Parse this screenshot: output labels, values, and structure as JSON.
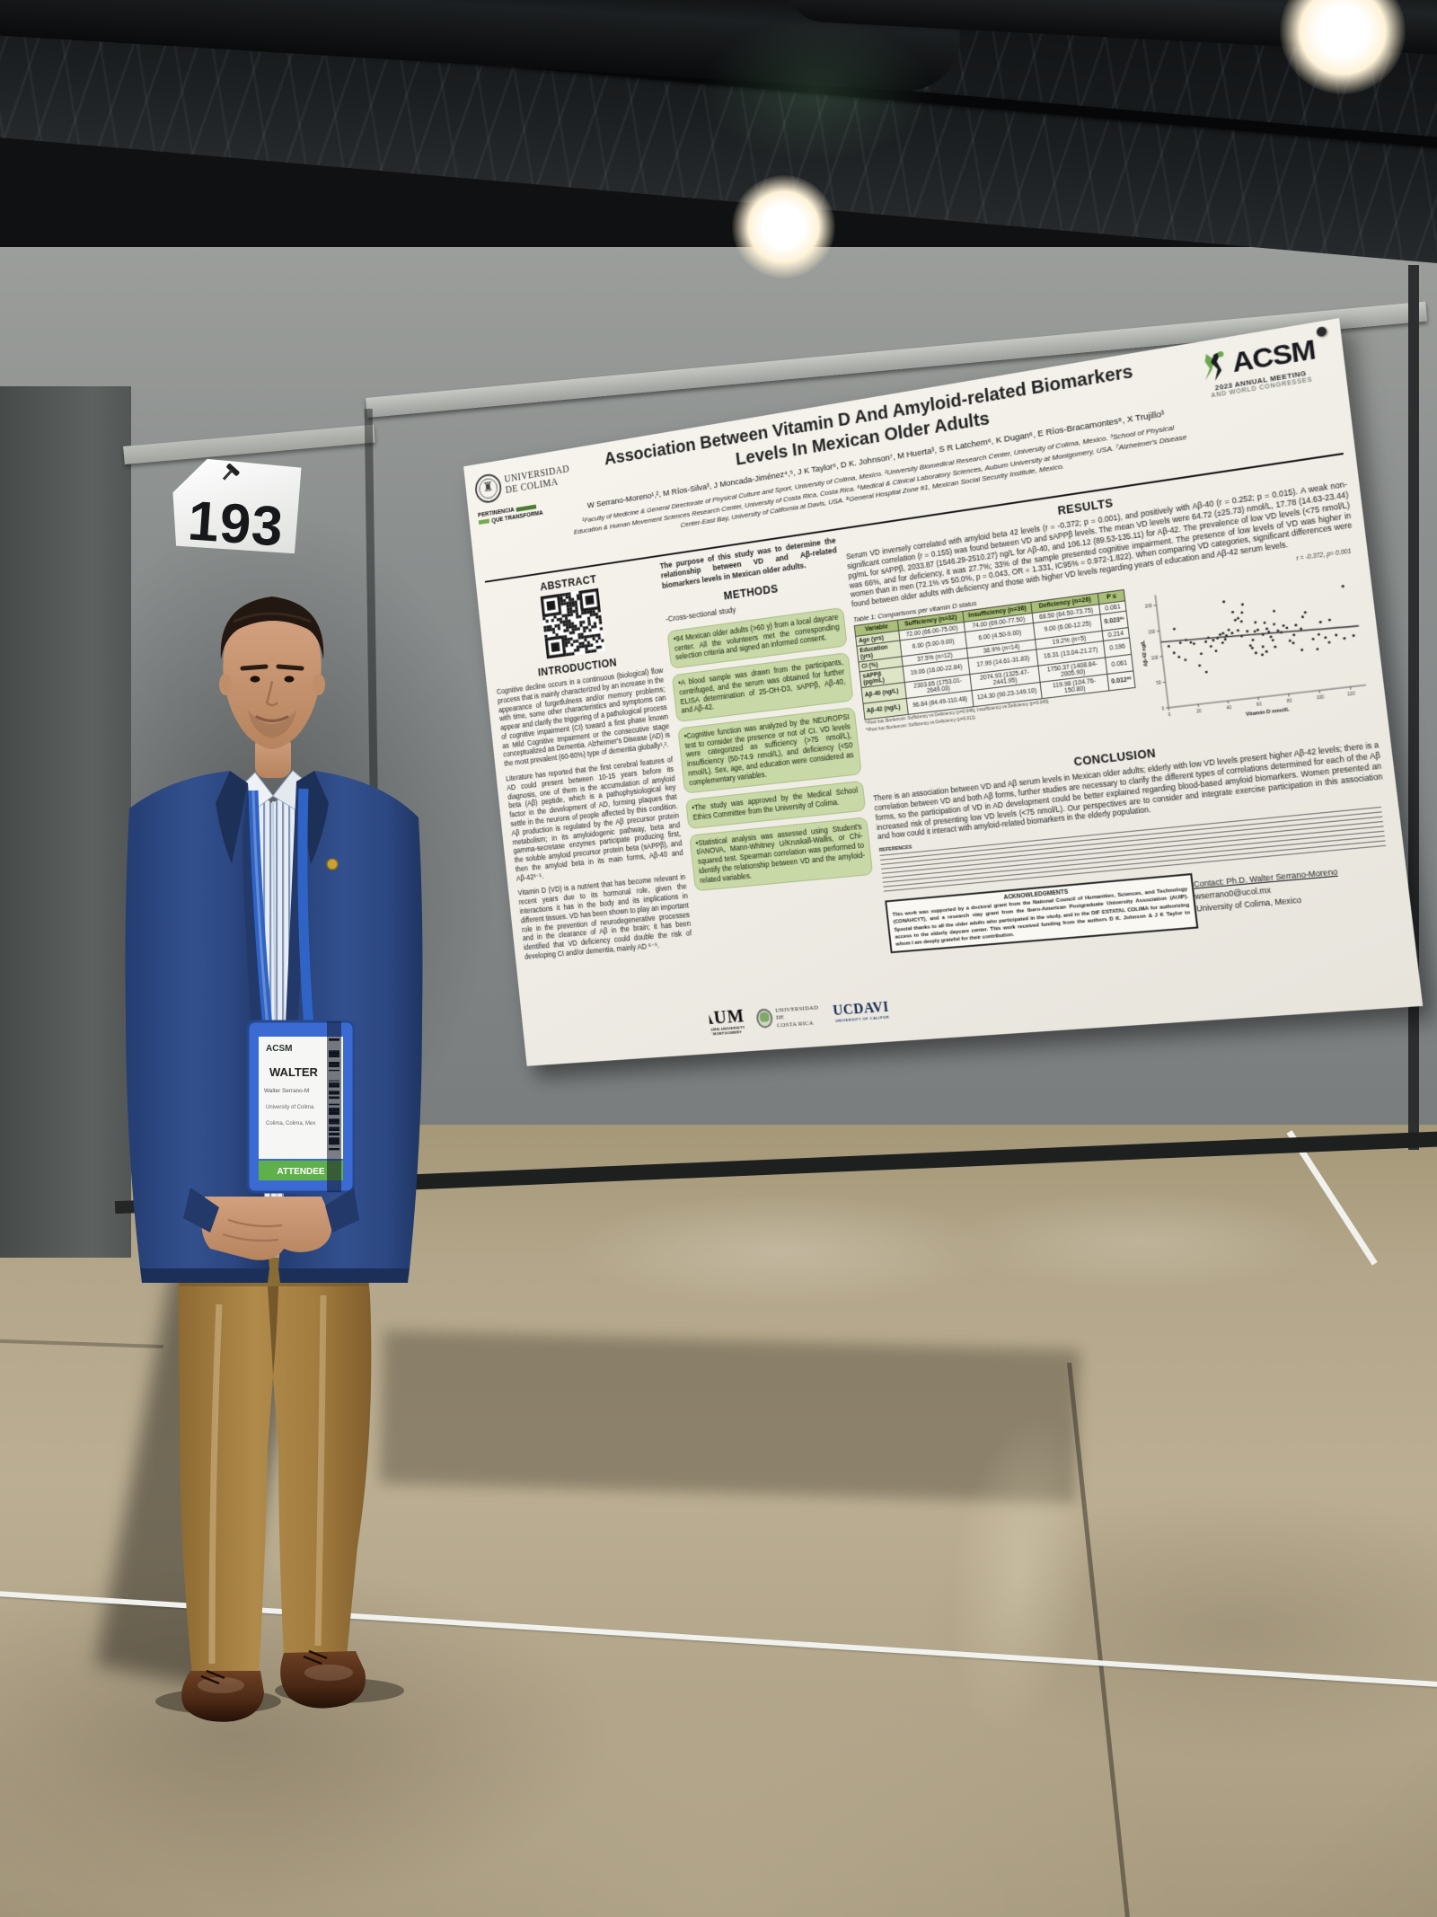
{
  "scene": {
    "board_tag": "193"
  },
  "poster": {
    "header": {
      "udec": {
        "line1": "UNIVERSIDAD",
        "line2": "DE COLIMA",
        "tag1": "PERTINENCIA",
        "tag2": "QUE TRANSFORMA"
      },
      "title1": "Association Between Vitamin D And Amyloid-related Biomarkers",
      "title2": "Levels In Mexican Older Adults",
      "authors": "W Serrano-Moreno¹,², M Ríos-Silva³, J Moncada-Jiménez⁴,⁵, J K Taylor⁶, D K. Johnson⁷, M Huerta³, S R Latchem⁶, K Dugan⁶, E Ríos-Bracamontes⁸, X Trujillo³",
      "affiliations": "¹Faculty of Medicine & General Directorate of Physical Culture and Sport, University of Colima, Mexico. ²University Biomedical Research Center, University of Colima, Mexico. ³School of Physical Education & Human Movement Sciences Research Center, University of Costa Rica, Costa Rica. ⁶Medical & Clinical Laboratory Sciences, Auburn University at Montgomery, USA. ⁷Alzheimer's Disease Center-East Bay, University of California at Davis, USA. ⁸General Hospital Zone #1, Mexican Social Security Institute, Mexico.",
      "acsm": {
        "name": "ACSM",
        "line1": "2023 ANNUAL MEETING",
        "line2": "AND WORLD CONGRESSES"
      }
    },
    "abstract_header": "ABSTRACT",
    "introduction": {
      "header": "INTRODUCTION",
      "p1": "Cognitive decline occurs in a continuous (biological) flow process that is mainly characterized by an increase in the appearance of forgetfulness and/or memory problems; with time, some other characteristics and symptoms can appear and clarify the triggering of a pathological process of cognitive impairment (CI) toward a first phase known as Mild Cognitive Impairment or the consecutive stage conceptualized as Dementia. Alzheimer's Disease (AD) is the most prevalent (60-80%) type of dementia globally¹,².",
      "p2": "Literature has reported that the first cerebral features of AD could present between 10-15 years before its diagnosis, one of them is the accumulation of amyloid beta (Aβ) peptide, which is a pathophysiological key factor in the development of AD, forming plaques that settle in the neurons of people affected by this condition. Aβ production is regulated by the Aβ precursor protein metabolism; in its amyloidogenic pathway, beta and gamma-secretase enzymes participate producing first, the soluble amyloid precursor protein beta (sAPPβ), and then the amyloid beta in its main forms, Aβ-40 and Aβ-42³⁻⁵.",
      "p3": "Vitamin D (VD) is a nutrient that has become relevant in recent years due to its hormonal role, given the interactions it has in the body and its implications in different tissues. VD has been shown to play an important role in the prevention of neurodegenerative processes and in the clearance of Aβ in the brain; it has been identified that VD deficiency could double the risk of developing CI and/or dementia, mainly AD ⁶⁻⁹."
    },
    "purpose": "The purpose of this study was to determine the relationship between VD and Aβ-related biomarkers levels in Mexican older adults.",
    "methods": {
      "header": "METHODS",
      "study": "-Cross-sectional study",
      "boxes": [
        "•94 Mexican older adults (>60 y) from a local daycare center. All the volunteers met the corresponding selection criteria and signed an informed consent.",
        "•A blood sample was drawn from the participants, centrifuged, and the serum was obtained for further ELISA determination of 25-OH-D3, sAPPβ, Aβ-40, and Aβ-42.",
        "•Cognitive function was analyzed by the NEUROPSI test to consider the presence or not of CI. VD levels were categorized as sufficiency (>75 nmol/L), insufficiency (50-74.9 nmol/L), and deficiency (<50 nmol/L). Sex, age, and education were considered as complementary variables.",
        "•The study was approved by the Medical School Ethics Committee from the University of Colima.",
        "•Statistical analysis was assessed using Student's t/ANOVA, Mann-Whitney U/Kruskall-Wallis, or Chi-squared test. Spearman correlation was performed to identify the relationship between VD and the amyloid-related variables."
      ]
    },
    "results": {
      "header": "RESULTS",
      "text": "Serum VD inversely correlated with amyloid beta 42 levels (r = -0.372; p = 0.001), and positively with Aβ-40 (r = 0.252; p = 0.015). A weak non-significant correlation (r = 0.155) was found between VD and sAPPβ levels. The mean VD levels were 64.72 (±25.73) nmol/L, 17.78 (14.63-23.44) pg/mL for sAPPβ, 2033.87 (1546.29-2510.27) ng/L for Aβ-40, and 106.12 (89.53-135.11) for Aβ-42. The prevalence of low VD levels (<75 nmol/L) was 66%, and for deficiency, it was 27.7%; 33% of the sample presented cognitive impairment. The presence of low levels of VD was higher in women than in men (72.1% vs 50.0%, p = 0.043, OR = 1.331, IC95% = 0.972-1.822). When comparing VD categories, significant differences were found between older adults with deficiency and those with higher VD levels regarding years of education and Aβ-42 serum levels."
    },
    "table": {
      "caption": "Table 1: Comparisons per vitamin D status",
      "headers": [
        "Variable",
        "Sufficiency (n=32)",
        "Insufficiency (n=36)",
        "Deficiency (n=26)",
        "P ≤"
      ],
      "rows": [
        [
          "Age (yrs)",
          "72.00 (66.00-75.00)",
          "74.00 (69.00-77.50)",
          "68.50 (64.50-73.75)",
          "0.061"
        ],
        [
          "Education (yrs)",
          "6.00 (5.00-9.00)",
          "6.00 (4.50-9.00)",
          "9.00 (6.00-12.25)",
          "0.023*¹"
        ],
        [
          "CI (%)",
          "37.5% (n=12)",
          "38.9% (n=14)",
          "19.2% (n=5)",
          "0.214"
        ],
        [
          "sAPPβ (pg/mL)",
          "19.06 (16.00-22.84)",
          "17.99 (14.61-31.83)",
          "16.31 (13.04-21.27)",
          "0.196"
        ],
        [
          "Aβ-40 (ng/L)",
          "2303.65 (1753.01-2649.03)",
          "2074.93 (1325.47-2441.95)",
          "1750.37 (1408.84-2005.90)",
          "0.061"
        ],
        [
          "Aβ-42 (ng/L)",
          "96.84 (84.49-110.48)",
          "124.30 (90.23-149.10)",
          "119.98 (104.76-150.80)",
          "0.012*²"
        ]
      ],
      "footnotes": [
        "*¹Post hoc Bonferroni: Sufficiency vs Deficiency (p=0.046), Insufficiency vs Deficiency (p=0.045)",
        "*²Post hoc Bonferroni: Sufficiency vs Deficiency (p=0.011)"
      ]
    },
    "conclusion": {
      "header": "CONCLUSION",
      "text": "There is an association between VD and Aβ serum levels in Mexican older adults; elderly with low VD levels present higher Aβ-42 levels; there is a correlation between VD and both Aβ forms, further studies are necessary to clarify the different types of correlations determined for each of the Aβ forms, so the participation of VD in AD development could be better explained regarding blood-based amyloid biomarkers. Women presented an increased risk of presenting low VD levels (<75 nmol/L). Our perspectives are to consider and integrate exercise participation in this association and how could it interact with amyloid-related biomarkers in the elderly population."
    },
    "references_header": "REFERENCES",
    "acknowledgments": {
      "header": "ACKNOWLEDGMENTS",
      "text": "This work was supported by a doctoral grant from the National Council of Humanities, Sciences, and Technology (CONAHCYT), and a research stay grant from the Ibero-American Postgraduate University Association (AUIP). Special thanks to all the older adults who participated in the study, and to the DIF ESTATAL COLIMA for authorizing access to the elderly daycare center. This work received funding from the authors D K. Johnson & J K Taylor to whom I am deeply grateful for their contribution."
    },
    "contact": {
      "line1": "Contact: Ph.D. Walter Serrano-Moreno",
      "line2": "wserrano0@ucol.mx",
      "line3": "University of Colima, Mexico"
    },
    "partner_logos": {
      "aum": "AUM",
      "aum_sub": "AUBURN UNIVERSITY AT MONTGOMERY",
      "ucr1": "UNIVERSIDAD DE",
      "ucr2": "COSTA RICA",
      "ucd": "UCDAVIS",
      "ucd_sub": "UNIVERSITY OF CALIFORNIA"
    },
    "colors": {
      "accent_green": "#a9bf79",
      "box_green": "#c9d8a7",
      "attendee_green": "#5fb04a"
    }
  },
  "badge": {
    "brand": "ACSM",
    "name_big": "WALTER",
    "name": "Walter Serrano-M",
    "org_line": "University of Colima",
    "loc_line": "Colima, Colima, Mex",
    "role": "ATTENDEE"
  },
  "chart_data": {
    "type": "scatter",
    "title": "",
    "xlabel": "Vitamin D nmol/L",
    "ylabel": "Aβ-42 ng/L",
    "annotation": "r = -0.372, p= 0.001",
    "xlim": [
      0,
      130
    ],
    "ylim": [
      0,
      220
    ],
    "xticks": [
      0,
      20,
      40,
      60,
      80,
      100,
      120
    ],
    "yticks": [
      0,
      50,
      100,
      150,
      200
    ],
    "grid": false,
    "legend": "none",
    "trend_line": {
      "x1": 0,
      "y1": 128,
      "x2": 130,
      "y2": 112
    },
    "points": [
      [
        5,
        118
      ],
      [
        8,
        104
      ],
      [
        10,
        150
      ],
      [
        11,
        95
      ],
      [
        13,
        122
      ],
      [
        15,
        88
      ],
      [
        17,
        126
      ],
      [
        20,
        120
      ],
      [
        22,
        117
      ],
      [
        24,
        74
      ],
      [
        26,
        96
      ],
      [
        28,
        60
      ],
      [
        30,
        118
      ],
      [
        32,
        125
      ],
      [
        33,
        108
      ],
      [
        35,
        119
      ],
      [
        36,
        98
      ],
      [
        38,
        122
      ],
      [
        40,
        128
      ],
      [
        41,
        112
      ],
      [
        42,
        130
      ],
      [
        43,
        118
      ],
      [
        44,
        125
      ],
      [
        45,
        190
      ],
      [
        46,
        135
      ],
      [
        48,
        128
      ],
      [
        50,
        168
      ],
      [
        51,
        152
      ],
      [
        52,
        132
      ],
      [
        53,
        155
      ],
      [
        54,
        120
      ],
      [
        55,
        148
      ],
      [
        56,
        165
      ],
      [
        57,
        180
      ],
      [
        58,
        128
      ],
      [
        59,
        100
      ],
      [
        60,
        95
      ],
      [
        61,
        110
      ],
      [
        62,
        85
      ],
      [
        63,
        126
      ],
      [
        64,
        143
      ],
      [
        65,
        128
      ],
      [
        66,
        80
      ],
      [
        67,
        95
      ],
      [
        68,
        118
      ],
      [
        69,
        85
      ],
      [
        70,
        140
      ],
      [
        71,
        128
      ],
      [
        72,
        122
      ],
      [
        73,
        112
      ],
      [
        74,
        105
      ],
      [
        75,
        92
      ],
      [
        76,
        135
      ],
      [
        77,
        160
      ],
      [
        78,
        122
      ],
      [
        80,
        118
      ],
      [
        82,
        130
      ],
      [
        84,
        125
      ],
      [
        85,
        100
      ],
      [
        87,
        95
      ],
      [
        88,
        110
      ],
      [
        90,
        128
      ],
      [
        92,
        80
      ],
      [
        93,
        120
      ],
      [
        95,
        142
      ],
      [
        97,
        150
      ],
      [
        100,
        98
      ],
      [
        102,
        78
      ],
      [
        104,
        105
      ],
      [
        106,
        128
      ],
      [
        108,
        98
      ],
      [
        110,
        88
      ],
      [
        112,
        130
      ],
      [
        115,
        100
      ],
      [
        120,
        92
      ],
      [
        123,
        190
      ],
      [
        126,
        95
      ]
    ]
  }
}
